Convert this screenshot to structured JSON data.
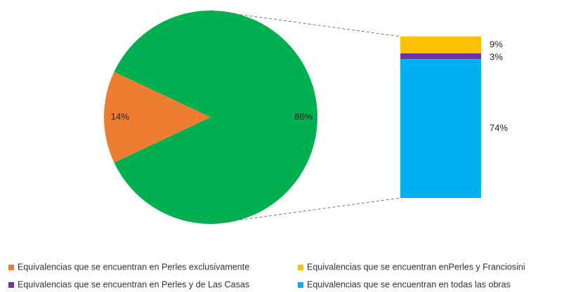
{
  "chart_data": {
    "type": "pie",
    "pie": {
      "series": [
        {
          "name": "Equivalencias que se encuentran en Perles exclusivamente",
          "color": "#ed7d31",
          "value": 14,
          "value_label": "14%"
        }
      ],
      "other": {
        "color": "#00b050",
        "value": 86,
        "value_label": "86%"
      }
    },
    "bar": {
      "series": [
        {
          "name": "Equivalencias que se encuentran enPerles y Franciosini",
          "color": "#ffc000",
          "value": 9,
          "value_label": "9%"
        },
        {
          "name": "Equivalencias que se encuentran en Perles y de Las Casas",
          "color": "#7030a0",
          "value": 3,
          "value_label": "3%"
        },
        {
          "name": "Equivalencias que se encuentran en todas las obras",
          "color": "#00b0f0",
          "value": 74,
          "value_label": "74%"
        }
      ]
    }
  }
}
